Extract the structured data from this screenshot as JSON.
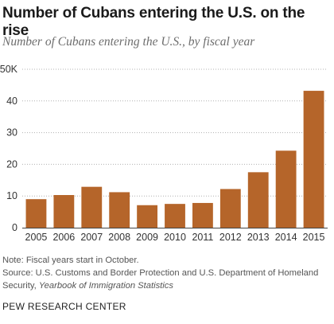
{
  "header": {
    "title": "Number of Cubans entering the U.S. on the rise",
    "subtitle": "Number of Cubans entering the U.S., by fiscal year"
  },
  "chart_data": {
    "type": "bar",
    "categories": [
      "2005",
      "2006",
      "2007",
      "2008",
      "2009",
      "2010",
      "2011",
      "2012",
      "2013",
      "2014",
      "2015"
    ],
    "values": [
      9.0,
      10.3,
      12.9,
      11.2,
      7.1,
      7.5,
      7.8,
      12.2,
      17.5,
      24.3,
      43.2
    ],
    "ylim": [
      0,
      50
    ],
    "yticks": [
      0,
      10,
      20,
      30,
      40,
      50
    ],
    "ytick_labels": [
      "0",
      "10",
      "20",
      "30",
      "40",
      "50K"
    ],
    "grid": true,
    "bar_color": "#b5652a"
  },
  "footer": {
    "note": "Note: Fiscal years start in October.",
    "source_prefix": "Source: U.S. Customs and Border Protection and U.S. Department of Homeland Security, ",
    "source_italic": "Yearbook of Immigration Statistics",
    "org": "PEW RESEARCH CENTER"
  }
}
